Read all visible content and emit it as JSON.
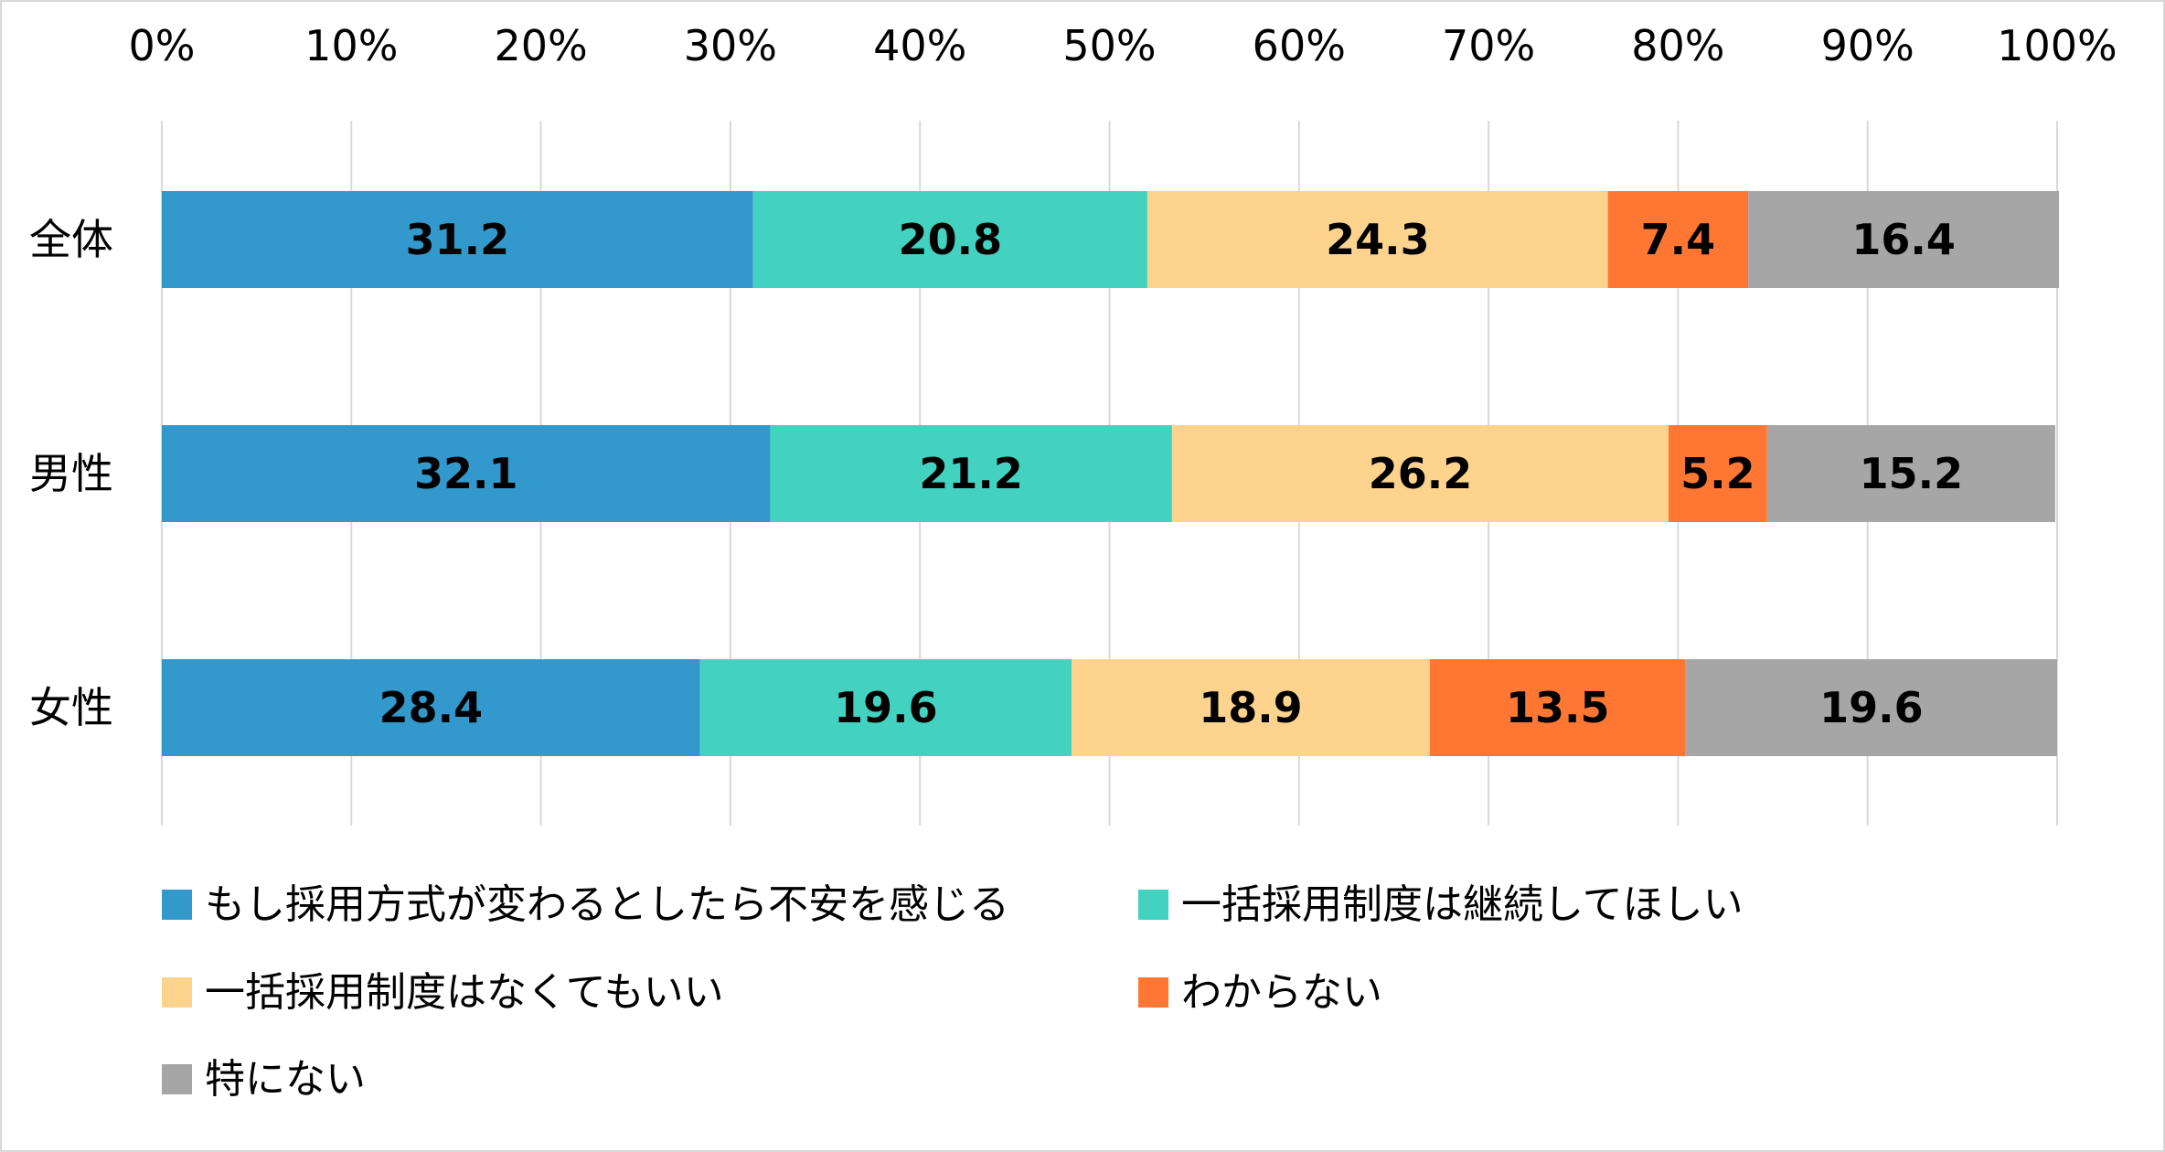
{
  "chart_data": {
    "type": "bar",
    "orientation": "horizontal",
    "stacked": "percent",
    "title": "",
    "xlabel": "",
    "ylabel": "",
    "xlim": [
      0,
      100
    ],
    "x_ticks": [
      "0%",
      "10%",
      "20%",
      "30%",
      "40%",
      "50%",
      "60%",
      "70%",
      "80%",
      "90%",
      "100%"
    ],
    "grid": "vertical",
    "legend_position": "bottom",
    "categories": [
      "全体",
      "男性",
      "女性"
    ],
    "series": [
      {
        "name": "もし採用方式が変わるとしたら不安を感じる",
        "color": "#3399cc",
        "values": [
          31.2,
          32.1,
          28.4
        ]
      },
      {
        "name": "一括採用制度は継続してほしい",
        "color": "#44d2c0",
        "values": [
          20.8,
          21.2,
          19.6
        ]
      },
      {
        "name": "一括採用制度はなくてもいい",
        "color": "#fdd38e",
        "values": [
          24.3,
          26.2,
          18.9
        ]
      },
      {
        "name": "わからない",
        "color": "#ff7733",
        "values": [
          7.4,
          5.2,
          13.5
        ]
      },
      {
        "name": "特にない",
        "color": "#a6a6a6",
        "values": [
          16.4,
          15.2,
          19.6
        ]
      }
    ]
  }
}
